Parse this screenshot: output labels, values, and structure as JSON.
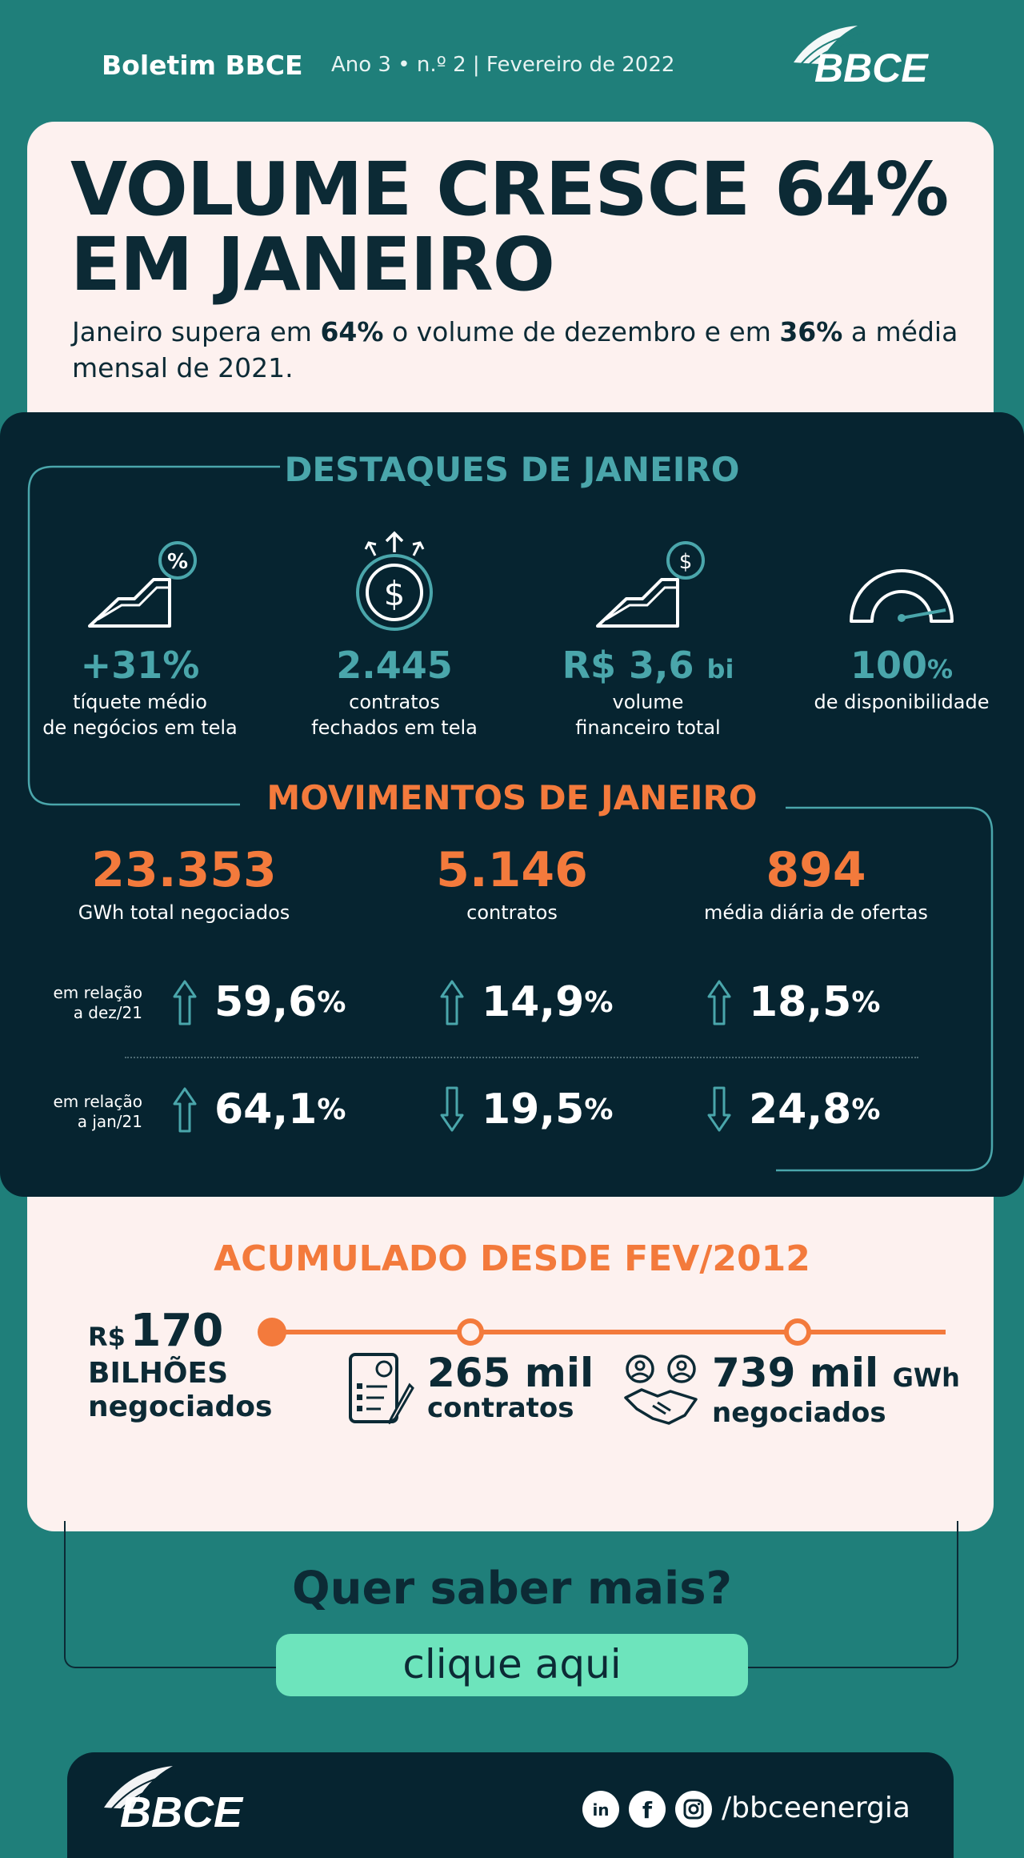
{
  "header": {
    "title": "Boletim BBCE",
    "issue": "Ano 3 • n.º 2 | Fevereiro de 2022",
    "logo_text": "BBCE"
  },
  "headline": {
    "line1": "VOLUME CRESCE 64%",
    "line2": "EM JANEIRO",
    "sub_a": "Janeiro supera em ",
    "sub_b": "64%",
    "sub_c": " o volume de dezembro e em ",
    "sub_d": "36%",
    "sub_e": " a média mensal de 2021."
  },
  "destaques": {
    "title": "DESTAQUES DE JANEIRO",
    "items": [
      {
        "value": "+31%",
        "unit": "",
        "label1": "tíquete médio",
        "label2": "de negócios em tela",
        "icon": "growth-percent-icon"
      },
      {
        "value": "2.445",
        "unit": "",
        "label1": "contratos",
        "label2": "fechados em tela",
        "icon": "dollar-coin-icon"
      },
      {
        "value": "R$ 3,6",
        "unit": "bi",
        "label1": "volume",
        "label2": "financeiro total",
        "icon": "growth-dollar-icon"
      },
      {
        "value": "100",
        "unit": "%",
        "label1": "de disponibilidade",
        "label2": "",
        "icon": "gauge-icon"
      }
    ]
  },
  "movimentos": {
    "title": "MOVIMENTOS DE JANEIRO",
    "metrics": [
      {
        "value": "23.353",
        "label": "GWh total negociados"
      },
      {
        "value": "5.146",
        "label": "contratos"
      },
      {
        "value": "894",
        "label": "média diária de ofertas"
      }
    ],
    "rows": [
      {
        "label1": "em relação",
        "label2": "a dez/21",
        "changes": [
          {
            "value": "59,6",
            "unit": "%",
            "direction": "up"
          },
          {
            "value": "14,9",
            "unit": "%",
            "direction": "up"
          },
          {
            "value": "18,5",
            "unit": "%",
            "direction": "up"
          }
        ]
      },
      {
        "label1": "em relação",
        "label2": "a jan/21",
        "changes": [
          {
            "value": "64,1",
            "unit": "%",
            "direction": "up"
          },
          {
            "value": "19,5",
            "unit": "%",
            "direction": "down"
          },
          {
            "value": "24,8",
            "unit": "%",
            "direction": "down"
          }
        ]
      }
    ]
  },
  "acumulado": {
    "title": "ACUMULADO DESDE FEV/2012",
    "money_currency": "R$",
    "money_value": "170",
    "money_line2": "BILHÕES",
    "money_line3": "negociados",
    "contracts_value": "265 mil",
    "contracts_label": "contratos",
    "gwh_value": "739 mil",
    "gwh_unit": "GWh",
    "gwh_label": "negociados"
  },
  "cta": {
    "question": "Quer saber mais?",
    "button": "clique aqui"
  },
  "footer": {
    "logo_text": "BBCE",
    "handle": "/bbceenergia"
  },
  "colors": {
    "background": "#1f7f7a",
    "dark": "#062430",
    "cream": "#fdf1ef",
    "teal": "#4aa6ab",
    "orange": "#f37a3c",
    "cta": "#6de4bc"
  }
}
